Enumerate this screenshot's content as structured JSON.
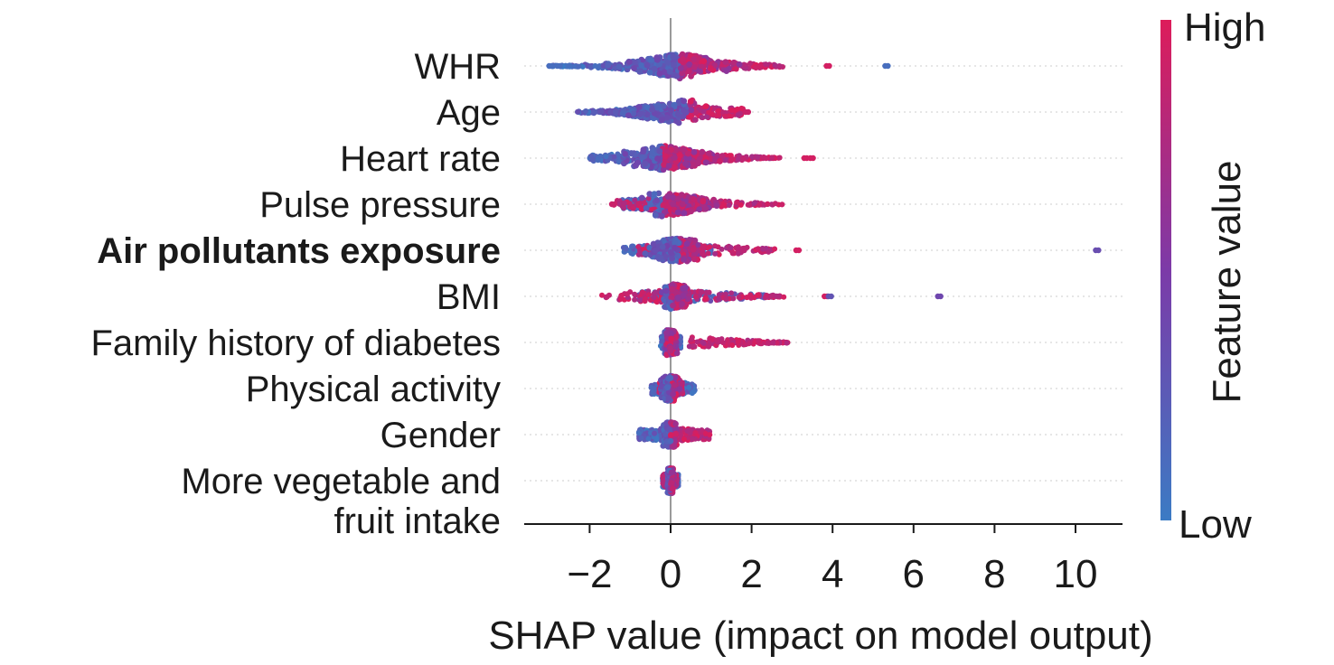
{
  "chart_data": {
    "type": "scatter",
    "subtype": "shap-beeswarm",
    "xlabel": "SHAP value (impact on model output)",
    "xlim": [
      -3.4,
      11.3
    ],
    "xticks": [
      -2,
      0,
      2,
      4,
      6,
      8,
      10
    ],
    "xtick_labels": [
      "−2",
      "0",
      "2",
      "4",
      "6",
      "8",
      "10"
    ],
    "colorbar": {
      "label": "Feature value",
      "high_label": "High",
      "low_label": "Low",
      "high_color": "#dd1c5a",
      "low_color": "#3b7bc4"
    },
    "features": [
      {
        "name": "WHR",
        "lines": [
          "WHR"
        ],
        "bold": false,
        "low_range": [
          -3.0,
          0.3
        ],
        "high_range": [
          -0.1,
          2.8
        ],
        "dense": [
          -1.8,
          2.0
        ],
        "peak": 0.2,
        "outliers": [
          {
            "x": -3.0,
            "v": 0.1
          },
          {
            "x": -2.8,
            "v": 0.1
          },
          {
            "x": 3.85,
            "v": 0.95
          },
          {
            "x": 5.3,
            "v": 0.1
          }
        ]
      },
      {
        "name": "Age",
        "lines": [
          "Age"
        ],
        "bold": false,
        "low_range": [
          -2.3,
          0.2
        ],
        "high_range": [
          0.0,
          1.8
        ],
        "dense": [
          -2.2,
          1.2
        ],
        "peak": 0.4,
        "outliers": [
          {
            "x": 1.85,
            "v": 0.9
          }
        ]
      },
      {
        "name": "Heart rate",
        "lines": [
          "Heart rate"
        ],
        "bold": false,
        "low_range": [
          -2.0,
          0.2
        ],
        "high_range": [
          -0.1,
          2.7
        ],
        "dense": [
          -1.5,
          1.6
        ],
        "peak": -0.2,
        "outliers": [
          {
            "x": 3.3,
            "v": 0.95
          },
          {
            "x": 3.45,
            "v": 0.95
          }
        ]
      },
      {
        "name": "Pulse pressure",
        "lines": [
          "Pulse pressure"
        ],
        "bold": false,
        "low_range": [
          -1.2,
          0.2
        ],
        "high_range": [
          -1.4,
          2.8
        ],
        "dense": [
          -0.8,
          1.4
        ],
        "peak": -0.2,
        "outliers": [
          {
            "x": -1.45,
            "v": 0.9
          }
        ]
      },
      {
        "name": "Air pollutants exposure",
        "lines": [
          "Air pollutants exposure"
        ],
        "bold": true,
        "low_range": [
          -1.2,
          1.0
        ],
        "high_range": [
          -0.8,
          2.6
        ],
        "dense": [
          -0.8,
          1.0
        ],
        "peak": 0.2,
        "outliers": [
          {
            "x": 3.1,
            "v": 0.95
          },
          {
            "x": 10.5,
            "v": 0.35
          }
        ]
      },
      {
        "name": "BMI",
        "lines": [
          "BMI"
        ],
        "bold": false,
        "low_range": [
          -0.8,
          2.6
        ],
        "high_range": [
          -1.7,
          2.8
        ],
        "dense": [
          -0.3,
          0.6
        ],
        "peak": 0.0,
        "outliers": [
          {
            "x": 3.8,
            "v": 0.95
          },
          {
            "x": 3.9,
            "v": 0.3
          },
          {
            "x": 6.6,
            "v": 0.4
          }
        ]
      },
      {
        "name": "Family history of diabetes",
        "lines": [
          "Family history of diabetes"
        ],
        "bold": false,
        "low_range": [
          -0.25,
          0.25
        ],
        "high_range": [
          0.45,
          2.9
        ],
        "dense": [
          -0.2,
          0.2
        ],
        "peak": -0.1,
        "outliers": []
      },
      {
        "name": "Physical activity",
        "lines": [
          "Physical activity"
        ],
        "bold": false,
        "low_range": [
          -0.5,
          0.6
        ],
        "high_range": [
          -0.3,
          0.3
        ],
        "dense": [
          -0.3,
          0.3
        ],
        "peak": 0.0,
        "outliers": []
      },
      {
        "name": "Gender",
        "lines": [
          "Gender"
        ],
        "bold": false,
        "low_range": [
          -0.8,
          0.1
        ],
        "high_range": [
          -0.1,
          1.0
        ],
        "dense": [
          -0.2,
          0.2
        ],
        "peak": 0.0,
        "outliers": []
      },
      {
        "name": "More vegetable and fruit intake",
        "lines": [
          "More vegetable and",
          "fruit intake"
        ],
        "bold": false,
        "low_range": [
          -0.2,
          0.2
        ],
        "high_range": [
          -0.2,
          0.15
        ],
        "dense": [
          -0.1,
          0.1
        ],
        "peak": 0.0,
        "outliers": []
      }
    ]
  }
}
